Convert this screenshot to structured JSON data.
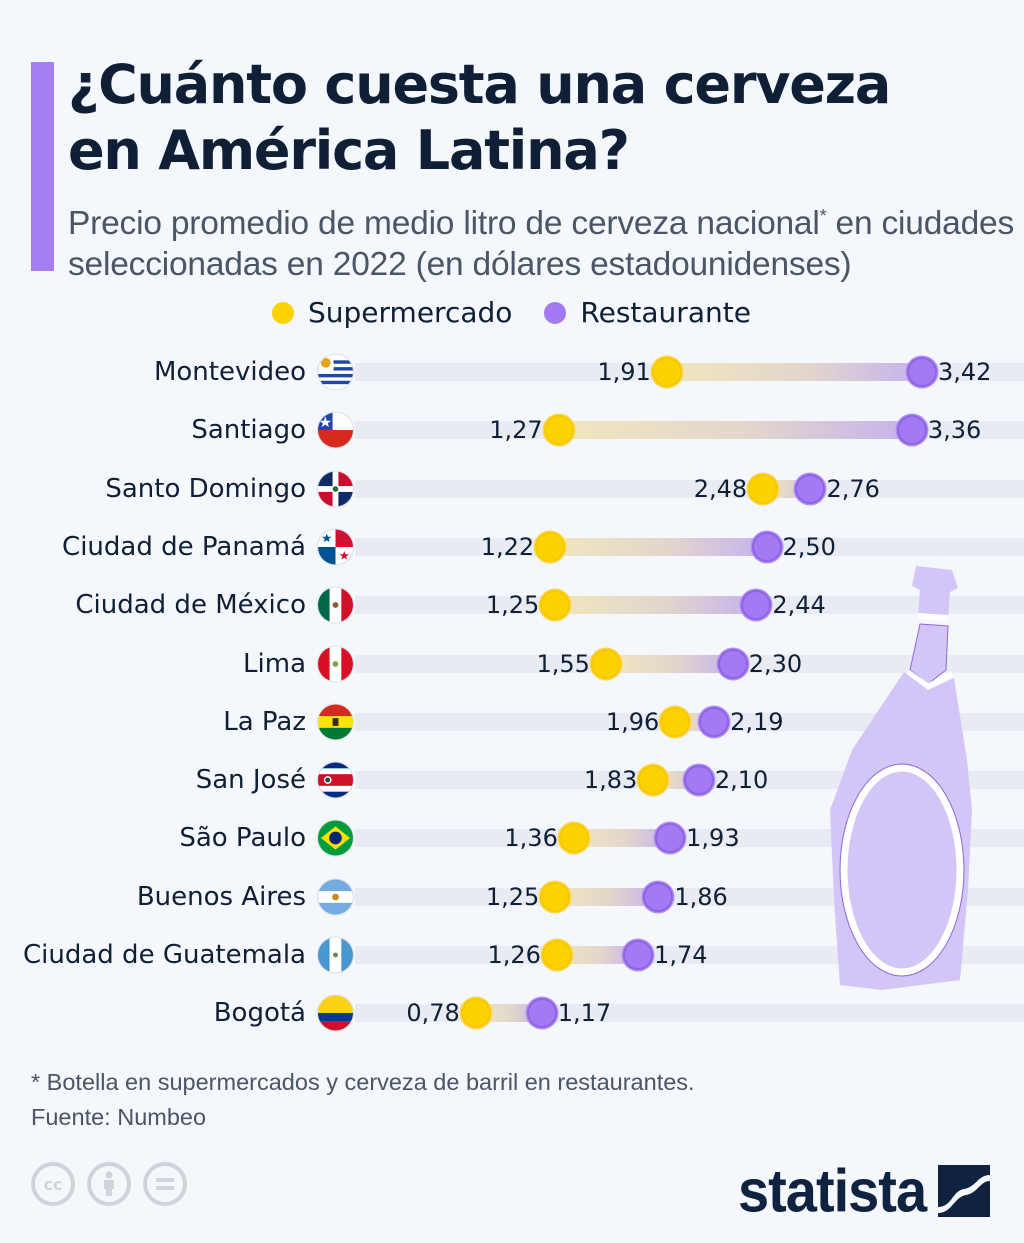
{
  "header": {
    "title": "¿Cuánto cuesta una cerveza\nen América Latina?",
    "subtitle_part1": "Precio promedio de medio litro de cerveza nacional",
    "subtitle_asterisk": "*",
    "subtitle_part2": " en ciudades seleccionadas en 2022 (en dólares estadounidenses)"
  },
  "colors": {
    "accent": "#a57ef2",
    "supermercado": "#fcd200",
    "restaurante": "#a47af3",
    "text": "#0f1f36",
    "background": "#f4f7fb"
  },
  "chart_data": {
    "type": "dumbbell",
    "title": "¿Cuánto cuesta una cerveza en América Latina?",
    "subtitle": "Precio promedio de medio litro de cerveza nacional* en ciudades seleccionadas en 2022 (en dólares estadounidenses)",
    "xlabel": "",
    "ylabel": "",
    "unit": "USD",
    "legend": [
      {
        "name": "Supermercado",
        "color": "#fcd200"
      },
      {
        "name": "Restaurante",
        "color": "#a47af3"
      }
    ],
    "legend_position": "top",
    "grid": false,
    "categories": [
      "Montevideo",
      "Santiago",
      "Santo Domingo",
      "Ciudad de Panamá",
      "Ciudad de México",
      "Lima",
      "La Paz",
      "San José",
      "São Paulo",
      "Buenos Aires",
      "Ciudad de Guatemala",
      "Bogotá"
    ],
    "flags": [
      "uruguay-flag",
      "chile-flag",
      "dominican-republic-flag",
      "panama-flag",
      "mexico-flag",
      "peru-flag",
      "bolivia-flag",
      "costa-rica-flag",
      "brazil-flag",
      "argentina-flag",
      "guatemala-flag",
      "colombia-flag"
    ],
    "series": [
      {
        "name": "Supermercado",
        "values": [
          1.91,
          1.27,
          2.48,
          1.22,
          1.25,
          1.55,
          1.96,
          1.83,
          1.36,
          1.25,
          1.26,
          0.78
        ]
      },
      {
        "name": "Restaurante",
        "values": [
          3.42,
          3.36,
          2.76,
          2.5,
          2.44,
          2.3,
          2.19,
          2.1,
          1.93,
          1.86,
          1.74,
          1.17
        ]
      }
    ],
    "value_labels": {
      "Supermercado": [
        "1,91",
        "1,27",
        "2,48",
        "1,22",
        "1,25",
        "1,55",
        "1,96",
        "1,83",
        "1,36",
        "1,25",
        "1,26",
        "0,78"
      ],
      "Restaurante": [
        "3,42",
        "3,36",
        "2,76",
        "2,50",
        "2,44",
        "2,30",
        "2,19",
        "2,10",
        "1,93",
        "1,86",
        "1,74",
        "1,17"
      ]
    },
    "xlim": [
      0,
      4
    ]
  },
  "footer": {
    "note": "* Botella en supermercados y cerveza de barril en restaurantes.",
    "source": "Fuente: Numbeo",
    "license_icons": [
      "cc-icon",
      "attribution-icon",
      "no-derivatives-icon"
    ],
    "cc_label": "cc",
    "brand": "statista"
  }
}
